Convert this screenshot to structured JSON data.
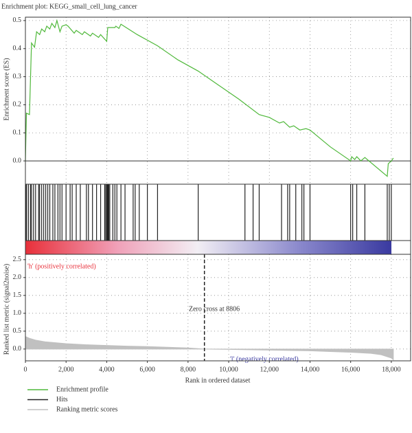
{
  "chart_data": [
    {
      "type": "line",
      "title": "Enrichment plot: KEGG_small_cell_lung_cancer",
      "ylabel": "Enrichment score (ES)",
      "xlim": [
        0,
        18950
      ],
      "ylim": [
        -0.083,
        0.512
      ],
      "yticks": [
        {
          "value": 0,
          "label": "0.0"
        },
        0.1,
        0.2,
        0.3,
        0.4,
        0.5
      ],
      "grid": true,
      "series": [
        {
          "name": "Enrichment profile",
          "color": "#4fb83a",
          "x": [
            0,
            50,
            200,
            300,
            450,
            550,
            700,
            800,
            950,
            1050,
            1200,
            1300,
            1450,
            1550,
            1700,
            1800,
            2000,
            2100,
            2400,
            2500,
            2800,
            2900,
            3200,
            3300,
            3600,
            3700,
            4000,
            4050,
            4400,
            4450,
            4600,
            4700,
            5500,
            6500,
            7500,
            8500,
            9500,
            10500,
            11500,
            12000,
            12500,
            12700,
            13000,
            13200,
            13500,
            13800,
            14000,
            14500,
            15000,
            16000,
            16050,
            16200,
            16300,
            16500,
            16700,
            17800,
            17850,
            18000,
            18100
          ],
          "values": [
            0,
            0.17,
            0.165,
            0.42,
            0.405,
            0.46,
            0.45,
            0.47,
            0.46,
            0.48,
            0.47,
            0.49,
            0.475,
            0.5,
            0.46,
            0.48,
            0.485,
            0.48,
            0.455,
            0.465,
            0.45,
            0.46,
            0.445,
            0.455,
            0.44,
            0.45,
            0.426,
            0.475,
            0.475,
            0.48,
            0.472,
            0.487,
            0.45,
            0.41,
            0.36,
            0.32,
            0.27,
            0.22,
            0.165,
            0.155,
            0.135,
            0.14,
            0.12,
            0.125,
            0.11,
            0.115,
            0.11,
            0.08,
            0.05,
            0,
            0.015,
            0.005,
            0.015,
            0,
            0.012,
            -0.055,
            -0.01,
            0,
            0.01
          ]
        }
      ]
    },
    {
      "type": "rug",
      "xlim": [
        0,
        18950
      ],
      "series": [
        {
          "name": "Hits",
          "color": "#222222",
          "x": [
            20,
            60,
            150,
            250,
            300,
            400,
            500,
            650,
            700,
            800,
            900,
            1000,
            1100,
            1200,
            1350,
            1450,
            1600,
            1700,
            1800,
            2000,
            2200,
            2300,
            2500,
            2700,
            3000,
            3100,
            3300,
            3500,
            3700,
            3900,
            3950,
            4000,
            4020,
            4050,
            4080,
            4100,
            4150,
            4300,
            4400,
            4500,
            4700,
            4900,
            5300,
            5400,
            5600,
            6000,
            6500,
            8500,
            10800,
            11200,
            11500,
            12600,
            12900,
            13000,
            13300,
            13600,
            13700,
            14000,
            16000,
            16100,
            16300,
            16700,
            17800,
            17900,
            18000
          ]
        }
      ]
    },
    {
      "type": "area",
      "ylabel": "Ranked list metric (signal2noise)",
      "xlabel": "Rank in ordered dataset",
      "xlim": [
        0,
        18950
      ],
      "ylim": [
        -0.33,
        2.65
      ],
      "xticks": [
        0,
        {
          "value": 2000,
          "label": "2,000"
        },
        {
          "value": 4000,
          "label": "4,000"
        },
        {
          "value": 6000,
          "label": "6,000"
        },
        {
          "value": 8000,
          "label": "8,000"
        },
        {
          "value": 10000,
          "label": "10,000"
        },
        {
          "value": 12000,
          "label": "12,000"
        },
        {
          "value": 14000,
          "label": "14,000"
        },
        {
          "value": 16000,
          "label": "16,000"
        },
        {
          "value": 18000,
          "label": "18,000"
        }
      ],
      "yticks": [
        {
          "value": 0,
          "label": "0.0"
        },
        0.5,
        {
          "value": 1,
          "label": "1.0"
        },
        1.5,
        {
          "value": 2,
          "label": "2.0"
        },
        2.5
      ],
      "grid": true,
      "positive_label": "'h' (positively correlated)",
      "negative_label": "'l' (negatively correlated)",
      "zero_cross": 8806,
      "zero_cross_label": "Zero cross at 8806",
      "series": [
        {
          "name": "Ranking metric scores",
          "color": "#c0c0c0",
          "x": [
            0,
            200,
            500,
            1000,
            2000,
            3000,
            4000,
            5000,
            6000,
            7000,
            8000,
            8806,
            10000,
            12000,
            14000,
            15000,
            16000,
            17000,
            17500,
            18000,
            18100
          ],
          "values": [
            0.35,
            0.3,
            0.25,
            0.2,
            0.15,
            0.12,
            0.1,
            0.08,
            0.07,
            0.05,
            0.03,
            0,
            -0.01,
            -0.03,
            -0.05,
            -0.07,
            -0.09,
            -0.12,
            -0.16,
            -0.25,
            -0.3
          ]
        }
      ]
    }
  ]
}
